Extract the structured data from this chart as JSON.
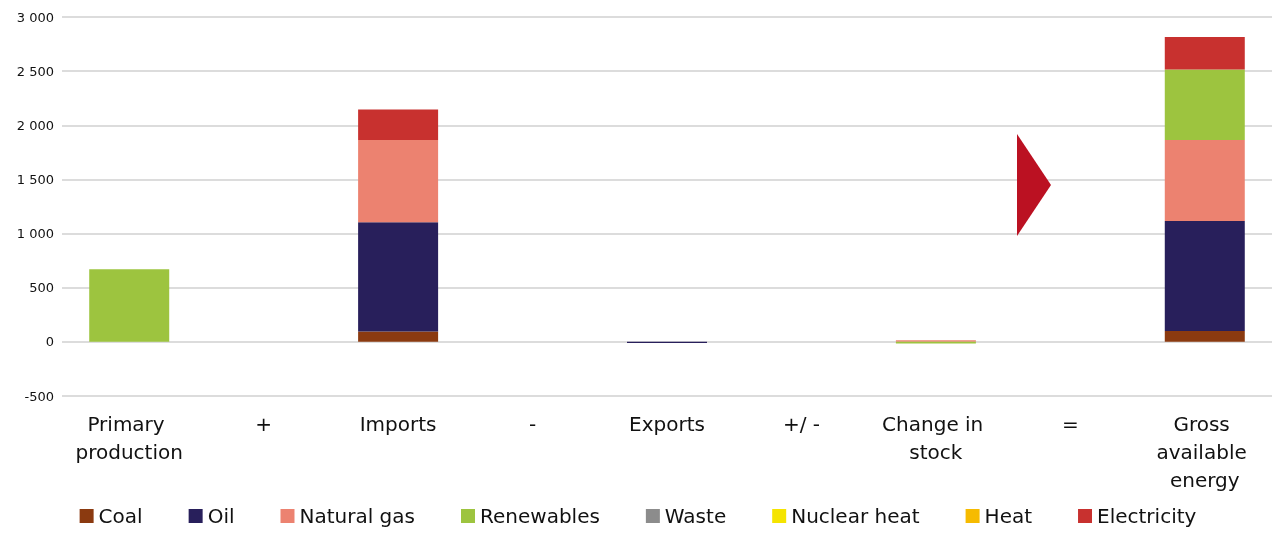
{
  "chart_data": {
    "type": "bar",
    "stacked": true,
    "categories": [
      "Primary production",
      "+",
      "Imports",
      "-",
      "Exports",
      "+/ -",
      "Change in stock",
      "=",
      "Gross available energy"
    ],
    "series": [
      {
        "name": "Coal",
        "color": "#8b3a10",
        "values": [
          null,
          null,
          95,
          null,
          null,
          null,
          null,
          null,
          100
        ]
      },
      {
        "name": "Oil",
        "color": "#281f5b",
        "values": [
          null,
          null,
          1010,
          null,
          -10,
          null,
          null,
          null,
          1015
        ]
      },
      {
        "name": "Natural gas",
        "color": "#ec8270",
        "values": [
          null,
          null,
          760,
          null,
          null,
          null,
          15,
          null,
          750
        ]
      },
      {
        "name": "Renewables",
        "color": "#9dc43f",
        "values": [
          670,
          null,
          null,
          null,
          null,
          null,
          -15,
          null,
          650
        ]
      },
      {
        "name": "Waste",
        "color": "#8c8c8c",
        "values": [
          null,
          null,
          null,
          null,
          null,
          null,
          null,
          null,
          null
        ]
      },
      {
        "name": "Nuclear heat",
        "color": "#f5e400",
        "values": [
          null,
          null,
          null,
          null,
          null,
          null,
          null,
          null,
          null
        ]
      },
      {
        "name": "Heat",
        "color": "#f6bb00",
        "values": [
          null,
          null,
          null,
          null,
          null,
          null,
          null,
          null,
          null
        ]
      },
      {
        "name": "Electricity",
        "color": "#c8312f",
        "values": [
          null,
          null,
          280,
          null,
          null,
          null,
          null,
          null,
          300
        ]
      }
    ],
    "ylim": [
      -500,
      3000
    ],
    "yticks": [
      {
        "value": -500,
        "label": "-500"
      },
      {
        "value": 0,
        "label": "0"
      },
      {
        "value": 500,
        "label": "500"
      },
      {
        "value": 1000,
        "label": "1 000"
      },
      {
        "value": 1500,
        "label": "1 500"
      },
      {
        "value": 2000,
        "label": "2 000"
      },
      {
        "value": 2500,
        "label": "2 500"
      },
      {
        "value": 3000,
        "label": "3 000"
      }
    ],
    "grid": "y",
    "legend": "bottom"
  }
}
